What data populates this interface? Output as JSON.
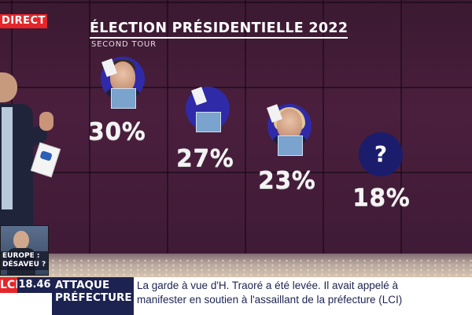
{
  "badge": {
    "direct": "DIRECT"
  },
  "graphic": {
    "title": "ÉLECTION PRÉSIDENTIELLE 2022",
    "subtitle": "SECOND TOUR",
    "candidates": [
      {
        "value": "30%"
      },
      {
        "value": "27%"
      },
      {
        "value": "23%"
      },
      {
        "value": "18%",
        "icon": "?"
      }
    ]
  },
  "inset": {
    "label_line1": "EUROPE :",
    "label_line2": "DÉSAVEU ?"
  },
  "ticker": {
    "channel": "LCI",
    "time": "18.46",
    "topic_line1": "ATTAQUE",
    "topic_line2": "PRÉFECTURE",
    "headline_line1": "La garde à vue d'H. Traoré a été levée. Il avait appelé à",
    "headline_line2": "manifester en soutien à l'assaillant de la préfecture (LCI)"
  },
  "colors": {
    "background": "#3a1931",
    "accent_red": "#e4262a",
    "navy": "#1d2350",
    "circle_blue": "#2f2aa8"
  }
}
